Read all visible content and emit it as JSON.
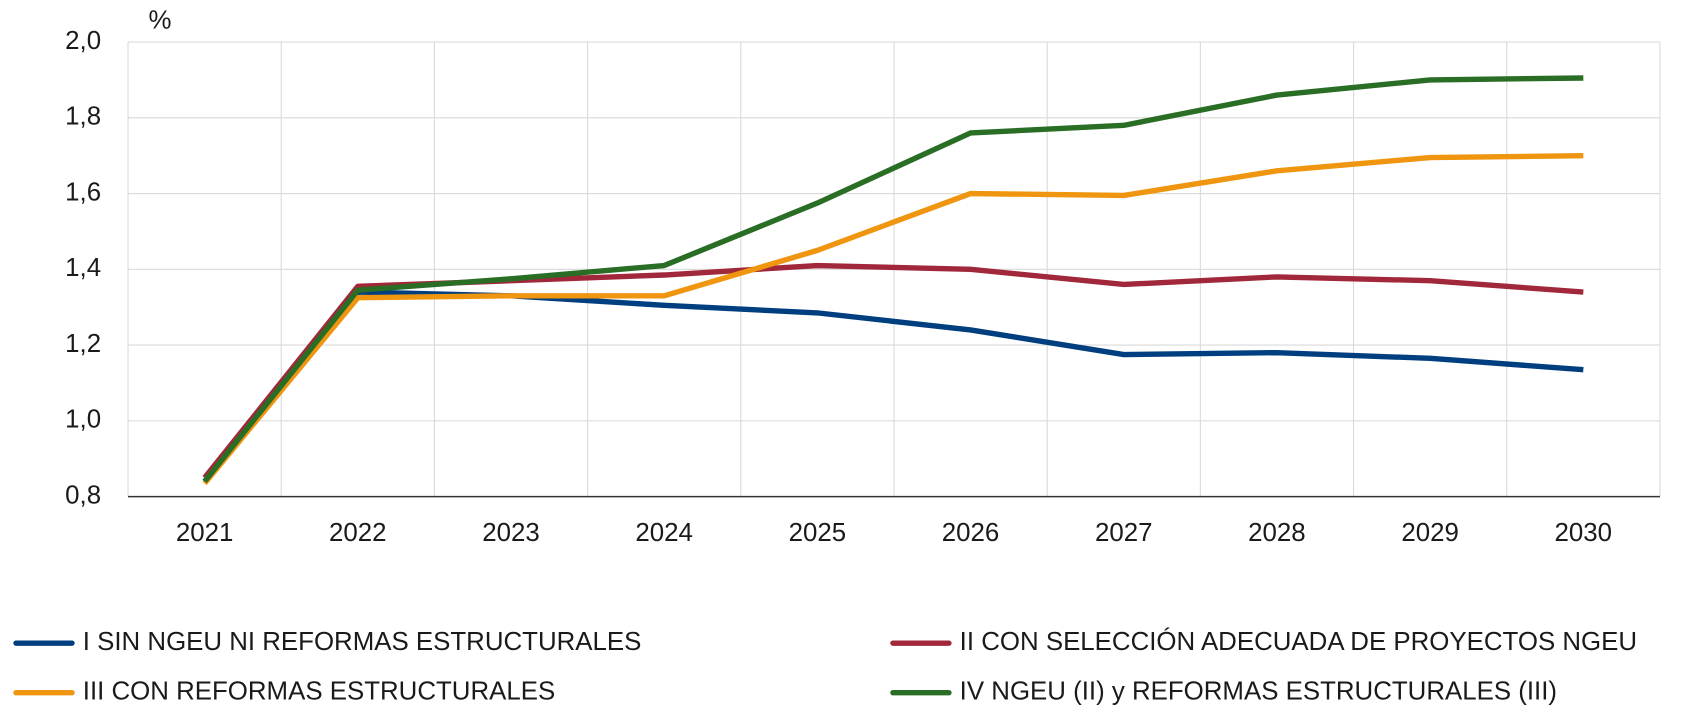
{
  "chart_data": {
    "type": "line",
    "y_unit": "%",
    "categories": [
      "2021",
      "2022",
      "2023",
      "2024",
      "2025",
      "2026",
      "2027",
      "2028",
      "2029",
      "2030"
    ],
    "series": [
      {
        "name": "I SIN NGEU NI REFORMAS ESTRUCTURALES",
        "color": "#003f7f",
        "values": [
          0.84,
          1.34,
          1.33,
          1.305,
          1.285,
          1.24,
          1.175,
          1.18,
          1.165,
          1.135
        ]
      },
      {
        "name": "II CON SELECCIÓN ADECUADA DE PROYECTOS NGEU",
        "color": "#a0283a",
        "values": [
          0.85,
          1.355,
          1.37,
          1.385,
          1.41,
          1.4,
          1.36,
          1.38,
          1.37,
          1.34
        ]
      },
      {
        "name": "III CON REFORMAS ESTRUCTURALES",
        "color": "#f0950f",
        "values": [
          0.835,
          1.325,
          1.33,
          1.33,
          1.45,
          1.6,
          1.595,
          1.66,
          1.695,
          1.7
        ]
      },
      {
        "name": "IV NGEU (II) y REFORMAS ESTRUCTURALES (III)",
        "color": "#2a6e25",
        "values": [
          0.84,
          1.345,
          1.375,
          1.41,
          1.575,
          1.76,
          1.78,
          1.86,
          1.9,
          1.905
        ]
      }
    ],
    "ylim": [
      0.8,
      2.0
    ],
    "yticks": [
      {
        "value": 0.8,
        "label": "0,8"
      },
      {
        "value": 1.0,
        "label": "1,0"
      },
      {
        "value": 1.2,
        "label": "1,2"
      },
      {
        "value": 1.4,
        "label": "1,4"
      },
      {
        "value": 1.6,
        "label": "1,6"
      },
      {
        "value": 1.8,
        "label": "1,8"
      },
      {
        "value": 2.0,
        "label": "2,0"
      }
    ],
    "grid": true
  }
}
